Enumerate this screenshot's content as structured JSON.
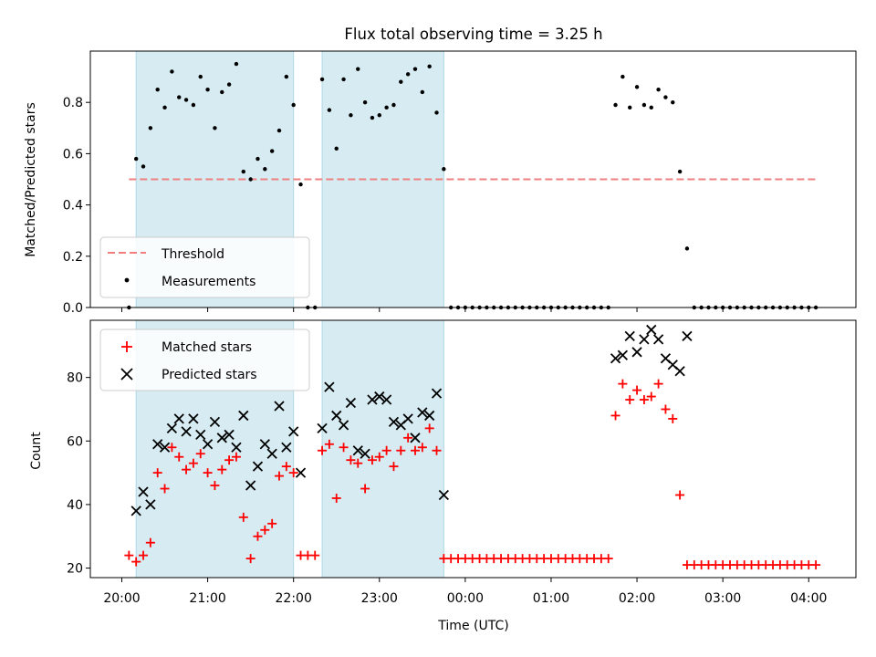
{
  "chart_data": [
    {
      "type": "scatter",
      "title": "Flux total observing time = 3.25 h",
      "xlabel": "",
      "ylabel": "Matched/Predicted stars",
      "xlim": [
        "19:38",
        "04:33"
      ],
      "ylim": [
        0,
        1.0
      ],
      "yticks": [
        "0.0",
        "0.2",
        "0.4",
        "0.6",
        "0.8"
      ],
      "grid": false,
      "legend": "lower-left",
      "shaded_intervals": [
        [
          "20:10",
          "22:00"
        ],
        [
          "22:20",
          "23:45"
        ]
      ],
      "threshold": {
        "name": "Threshold",
        "value": 0.5,
        "x_range": [
          "20:05",
          "04:05"
        ],
        "color": "#f08080"
      },
      "series": [
        {
          "name": "Measurements",
          "color": "#000000",
          "points": [
            [
              "20:05",
              0.0
            ],
            [
              "20:10",
              0.58
            ],
            [
              "20:15",
              0.55
            ],
            [
              "20:20",
              0.7
            ],
            [
              "20:25",
              0.85
            ],
            [
              "20:30",
              0.78
            ],
            [
              "20:35",
              0.92
            ],
            [
              "20:40",
              0.82
            ],
            [
              "20:45",
              0.81
            ],
            [
              "20:50",
              0.79
            ],
            [
              "20:55",
              0.9
            ],
            [
              "21:00",
              0.85
            ],
            [
              "21:05",
              0.7
            ],
            [
              "21:10",
              0.84
            ],
            [
              "21:15",
              0.87
            ],
            [
              "21:20",
              0.95
            ],
            [
              "21:25",
              0.53
            ],
            [
              "21:30",
              0.5
            ],
            [
              "21:35",
              0.58
            ],
            [
              "21:40",
              0.54
            ],
            [
              "21:45",
              0.61
            ],
            [
              "21:50",
              0.69
            ],
            [
              "21:55",
              0.9
            ],
            [
              "22:00",
              0.79
            ],
            [
              "22:05",
              0.48
            ],
            [
              "22:10",
              0.0
            ],
            [
              "22:15",
              0.0
            ],
            [
              "22:20",
              0.89
            ],
            [
              "22:25",
              0.77
            ],
            [
              "22:30",
              0.62
            ],
            [
              "22:35",
              0.89
            ],
            [
              "22:40",
              0.75
            ],
            [
              "22:45",
              0.93
            ],
            [
              "22:50",
              0.8
            ],
            [
              "22:55",
              0.74
            ],
            [
              "23:00",
              0.75
            ],
            [
              "23:05",
              0.78
            ],
            [
              "23:10",
              0.79
            ],
            [
              "23:15",
              0.88
            ],
            [
              "23:20",
              0.91
            ],
            [
              "23:25",
              0.93
            ],
            [
              "23:30",
              0.84
            ],
            [
              "23:35",
              0.94
            ],
            [
              "23:40",
              0.76
            ],
            [
              "23:45",
              0.54
            ],
            [
              "23:50",
              0.0
            ],
            [
              "23:55",
              0.0
            ],
            [
              "00:00",
              0.0
            ],
            [
              "00:05",
              0.0
            ],
            [
              "00:10",
              0.0
            ],
            [
              "00:15",
              0.0
            ],
            [
              "00:20",
              0.0
            ],
            [
              "00:25",
              0.0
            ],
            [
              "00:30",
              0.0
            ],
            [
              "00:35",
              0.0
            ],
            [
              "00:40",
              0.0
            ],
            [
              "00:45",
              0.0
            ],
            [
              "00:50",
              0.0
            ],
            [
              "00:55",
              0.0
            ],
            [
              "01:00",
              0.0
            ],
            [
              "01:05",
              0.0
            ],
            [
              "01:10",
              0.0
            ],
            [
              "01:15",
              0.0
            ],
            [
              "01:20",
              0.0
            ],
            [
              "01:25",
              0.0
            ],
            [
              "01:30",
              0.0
            ],
            [
              "01:35",
              0.0
            ],
            [
              "01:40",
              0.0
            ],
            [
              "01:45",
              0.79
            ],
            [
              "01:50",
              0.9
            ],
            [
              "01:55",
              0.78
            ],
            [
              "02:00",
              0.86
            ],
            [
              "02:05",
              0.79
            ],
            [
              "02:10",
              0.78
            ],
            [
              "02:15",
              0.85
            ],
            [
              "02:20",
              0.82
            ],
            [
              "02:25",
              0.8
            ],
            [
              "02:30",
              0.53
            ],
            [
              "02:35",
              0.23
            ],
            [
              "02:40",
              0.0
            ],
            [
              "02:45",
              0.0
            ],
            [
              "02:50",
              0.0
            ],
            [
              "02:55",
              0.0
            ],
            [
              "03:00",
              0.0
            ],
            [
              "03:05",
              0.0
            ],
            [
              "03:10",
              0.0
            ],
            [
              "03:15",
              0.0
            ],
            [
              "03:20",
              0.0
            ],
            [
              "03:25",
              0.0
            ],
            [
              "03:30",
              0.0
            ],
            [
              "03:35",
              0.0
            ],
            [
              "03:40",
              0.0
            ],
            [
              "03:45",
              0.0
            ],
            [
              "03:50",
              0.0
            ],
            [
              "03:55",
              0.0
            ],
            [
              "04:00",
              0.0
            ],
            [
              "04:05",
              0.0
            ]
          ]
        }
      ]
    },
    {
      "type": "scatter",
      "title": "",
      "xlabel": "Time (UTC)",
      "ylabel": "Count",
      "xlim": [
        "19:38",
        "04:33"
      ],
      "ylim": [
        17,
        98
      ],
      "yticks": [
        "20",
        "40",
        "60",
        "80"
      ],
      "xticks": [
        "20:00",
        "21:00",
        "22:00",
        "23:00",
        "00:00",
        "01:00",
        "02:00",
        "03:00",
        "04:00"
      ],
      "grid": false,
      "legend": "upper-left",
      "shaded_intervals": [
        [
          "20:10",
          "22:00"
        ],
        [
          "22:20",
          "23:45"
        ]
      ],
      "series": [
        {
          "name": "Matched stars",
          "color": "#ff0000",
          "marker": "+",
          "points": [
            [
              "20:05",
              24
            ],
            [
              "20:10",
              22
            ],
            [
              "20:15",
              24
            ],
            [
              "20:20",
              28
            ],
            [
              "20:25",
              50
            ],
            [
              "20:30",
              45
            ],
            [
              "20:35",
              58
            ],
            [
              "20:40",
              55
            ],
            [
              "20:45",
              51
            ],
            [
              "20:50",
              53
            ],
            [
              "20:55",
              56
            ],
            [
              "21:00",
              50
            ],
            [
              "21:05",
              46
            ],
            [
              "21:10",
              51
            ],
            [
              "21:15",
              54
            ],
            [
              "21:20",
              55
            ],
            [
              "21:25",
              36
            ],
            [
              "21:30",
              23
            ],
            [
              "21:35",
              30
            ],
            [
              "21:40",
              32
            ],
            [
              "21:45",
              34
            ],
            [
              "21:50",
              49
            ],
            [
              "21:55",
              52
            ],
            [
              "22:00",
              50
            ],
            [
              "22:05",
              24
            ],
            [
              "22:10",
              24
            ],
            [
              "22:15",
              24
            ],
            [
              "22:20",
              57
            ],
            [
              "22:25",
              59
            ],
            [
              "22:30",
              42
            ],
            [
              "22:35",
              58
            ],
            [
              "22:40",
              54
            ],
            [
              "22:45",
              53
            ],
            [
              "22:50",
              45
            ],
            [
              "22:55",
              54
            ],
            [
              "23:00",
              55
            ],
            [
              "23:05",
              57
            ],
            [
              "23:10",
              52
            ],
            [
              "23:15",
              57
            ],
            [
              "23:20",
              61
            ],
            [
              "23:25",
              57
            ],
            [
              "23:30",
              58
            ],
            [
              "23:35",
              64
            ],
            [
              "23:40",
              57
            ],
            [
              "23:45",
              23
            ],
            [
              "23:50",
              23
            ],
            [
              "23:55",
              23
            ],
            [
              "00:00",
              23
            ],
            [
              "00:05",
              23
            ],
            [
              "00:10",
              23
            ],
            [
              "00:15",
              23
            ],
            [
              "00:20",
              23
            ],
            [
              "00:25",
              23
            ],
            [
              "00:30",
              23
            ],
            [
              "00:35",
              23
            ],
            [
              "00:40",
              23
            ],
            [
              "00:45",
              23
            ],
            [
              "00:50",
              23
            ],
            [
              "00:55",
              23
            ],
            [
              "01:00",
              23
            ],
            [
              "01:05",
              23
            ],
            [
              "01:10",
              23
            ],
            [
              "01:15",
              23
            ],
            [
              "01:20",
              23
            ],
            [
              "01:25",
              23
            ],
            [
              "01:30",
              23
            ],
            [
              "01:35",
              23
            ],
            [
              "01:40",
              23
            ],
            [
              "01:45",
              68
            ],
            [
              "01:50",
              78
            ],
            [
              "01:55",
              73
            ],
            [
              "02:00",
              76
            ],
            [
              "02:05",
              73
            ],
            [
              "02:10",
              74
            ],
            [
              "02:15",
              78
            ],
            [
              "02:20",
              70
            ],
            [
              "02:25",
              67
            ],
            [
              "02:30",
              43
            ],
            [
              "02:35",
              21
            ],
            [
              "02:40",
              21
            ],
            [
              "02:45",
              21
            ],
            [
              "02:50",
              21
            ],
            [
              "02:55",
              21
            ],
            [
              "03:00",
              21
            ],
            [
              "03:05",
              21
            ],
            [
              "03:10",
              21
            ],
            [
              "03:15",
              21
            ],
            [
              "03:20",
              21
            ],
            [
              "03:25",
              21
            ],
            [
              "03:30",
              21
            ],
            [
              "03:35",
              21
            ],
            [
              "03:40",
              21
            ],
            [
              "03:45",
              21
            ],
            [
              "03:50",
              21
            ],
            [
              "03:55",
              21
            ],
            [
              "04:00",
              21
            ],
            [
              "04:05",
              21
            ]
          ]
        },
        {
          "name": "Predicted stars",
          "color": "#000000",
          "marker": "x",
          "points": [
            [
              "20:10",
              38
            ],
            [
              "20:15",
              44
            ],
            [
              "20:20",
              40
            ],
            [
              "20:25",
              59
            ],
            [
              "20:30",
              58
            ],
            [
              "20:35",
              64
            ],
            [
              "20:40",
              67
            ],
            [
              "20:45",
              63
            ],
            [
              "20:50",
              67
            ],
            [
              "20:55",
              62
            ],
            [
              "21:00",
              59
            ],
            [
              "21:05",
              66
            ],
            [
              "21:10",
              61
            ],
            [
              "21:15",
              62
            ],
            [
              "21:20",
              58
            ],
            [
              "21:25",
              68
            ],
            [
              "21:30",
              46
            ],
            [
              "21:35",
              52
            ],
            [
              "21:40",
              59
            ],
            [
              "21:45",
              56
            ],
            [
              "21:50",
              71
            ],
            [
              "21:55",
              58
            ],
            [
              "22:00",
              63
            ],
            [
              "22:05",
              50
            ],
            [
              "22:20",
              64
            ],
            [
              "22:25",
              77
            ],
            [
              "22:30",
              68
            ],
            [
              "22:35",
              65
            ],
            [
              "22:40",
              72
            ],
            [
              "22:45",
              57
            ],
            [
              "22:50",
              56
            ],
            [
              "22:55",
              73
            ],
            [
              "23:00",
              74
            ],
            [
              "23:05",
              73
            ],
            [
              "23:10",
              66
            ],
            [
              "23:15",
              65
            ],
            [
              "23:20",
              67
            ],
            [
              "23:25",
              61
            ],
            [
              "23:30",
              69
            ],
            [
              "23:35",
              68
            ],
            [
              "23:40",
              75
            ],
            [
              "23:45",
              43
            ],
            [
              "01:45",
              86
            ],
            [
              "01:50",
              87
            ],
            [
              "01:55",
              93
            ],
            [
              "02:00",
              88
            ],
            [
              "02:05",
              92
            ],
            [
              "02:10",
              95
            ],
            [
              "02:15",
              92
            ],
            [
              "02:20",
              86
            ],
            [
              "02:25",
              84
            ],
            [
              "02:30",
              82
            ],
            [
              "02:35",
              93
            ]
          ]
        }
      ]
    }
  ]
}
